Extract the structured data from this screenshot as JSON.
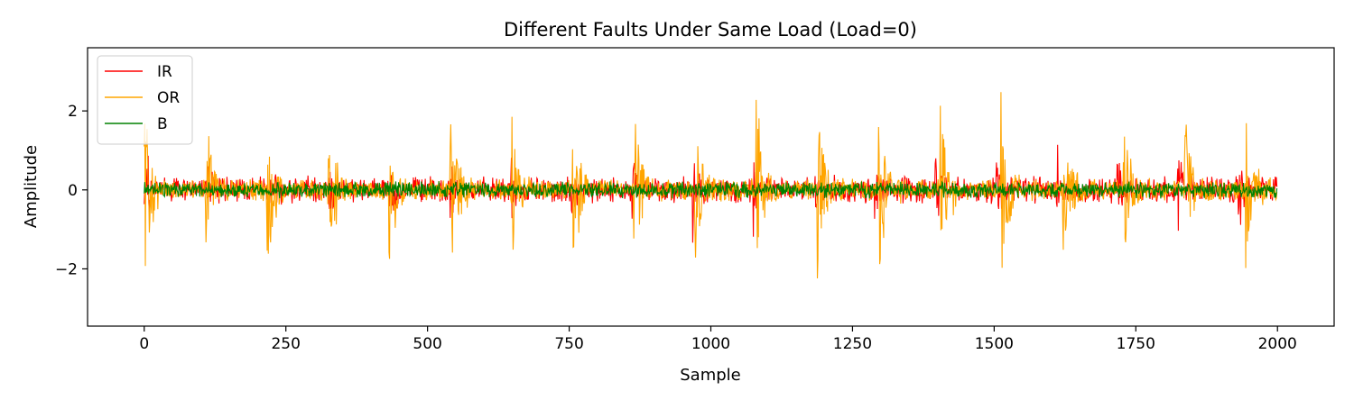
{
  "chart_data": {
    "type": "line",
    "title": "Different Faults Under Same Load (Load=0)",
    "xlabel": "Sample",
    "ylabel": "Amplitude",
    "xlim": [
      -100,
      2100
    ],
    "ylim": [
      -3.45,
      3.6
    ],
    "xticks": [
      {
        "value": 0,
        "label": "0"
      },
      {
        "value": 250,
        "label": "250"
      },
      {
        "value": 500,
        "label": "500"
      },
      {
        "value": 750,
        "label": "750"
      },
      {
        "value": 1000,
        "label": "1000"
      },
      {
        "value": 1250,
        "label": "1250"
      },
      {
        "value": 1500,
        "label": "1500"
      },
      {
        "value": 1750,
        "label": "1750"
      },
      {
        "value": 2000,
        "label": "2000"
      }
    ],
    "yticks": [
      {
        "value": -2,
        "label": "−2"
      },
      {
        "value": 0,
        "label": "0"
      },
      {
        "value": 2,
        "label": "2"
      }
    ],
    "grid": false,
    "legend_position": "top-left",
    "sample_count": 2000,
    "series": [
      {
        "name": "IR",
        "color": "#ff0000",
        "noise_amplitude": 0.25,
        "impulse_period": 107,
        "impulse_start": 5,
        "impulse_peak": 1.2,
        "impulse_decay": 8
      },
      {
        "name": "OR",
        "color": "#ffa500",
        "noise_amplitude": 0.2,
        "impulse_period": 108,
        "impulse_start": 0,
        "impulse_peak": 2.9,
        "impulse_decay": 12
      },
      {
        "name": "B",
        "color": "#008000",
        "noise_amplitude": 0.15,
        "impulse_period": 0,
        "impulse_start": 0,
        "impulse_peak": 0,
        "impulse_decay": 0
      }
    ]
  }
}
